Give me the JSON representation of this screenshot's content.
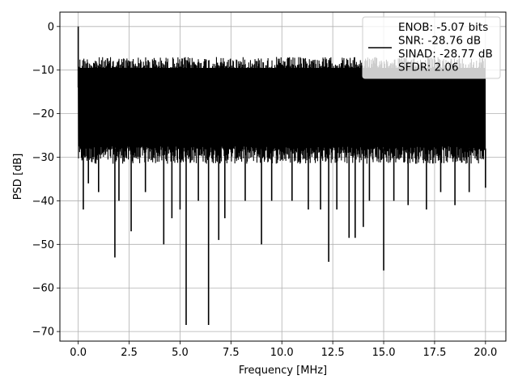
{
  "chart_data": {
    "type": "line",
    "title": "",
    "xlabel": "Frequency [MHz]",
    "ylabel": "PSD [dB]",
    "xlim": [
      -0.9,
      21.0
    ],
    "ylim": [
      -72.2,
      3.3
    ],
    "xticks": [
      0.0,
      2.5,
      5.0,
      7.5,
      10.0,
      12.5,
      15.0,
      17.5,
      20.0
    ],
    "xtick_labels": [
      "0.0",
      "2.5",
      "5.0",
      "7.5",
      "10.0",
      "12.5",
      "15.0",
      "17.5",
      "20.0"
    ],
    "yticks": [
      0,
      -10,
      -20,
      -30,
      -40,
      -50,
      -60,
      -70
    ],
    "ytick_labels": [
      "0",
      "−10",
      "−20",
      "−30",
      "−40",
      "−50",
      "−60",
      "−70"
    ],
    "grid": true,
    "legend_position": "top-right",
    "series": [
      {
        "name": "ENOB: -5.07 bits\nSNR: -28.76 dB\nSINAD: -28.77 dB\nSFDR: 2.06",
        "color": "#000000",
        "noise_band": {
          "x_start": 0.0,
          "x_end": 20.0,
          "upper_envelope": -7,
          "dense_lower": -30
        },
        "peaks": [
          {
            "x": 0.0,
            "y": 0.0
          }
        ],
        "deep_minima": [
          {
            "x": 0.25,
            "y": -42
          },
          {
            "x": 0.5,
            "y": -36
          },
          {
            "x": 1.0,
            "y": -38
          },
          {
            "x": 1.8,
            "y": -53
          },
          {
            "x": 2.0,
            "y": -40
          },
          {
            "x": 2.6,
            "y": -47
          },
          {
            "x": 3.3,
            "y": -38
          },
          {
            "x": 4.2,
            "y": -50
          },
          {
            "x": 4.6,
            "y": -44
          },
          {
            "x": 5.0,
            "y": -42
          },
          {
            "x": 5.3,
            "y": -68.5
          },
          {
            "x": 5.9,
            "y": -40
          },
          {
            "x": 6.4,
            "y": -68.5
          },
          {
            "x": 6.9,
            "y": -49
          },
          {
            "x": 7.2,
            "y": -44
          },
          {
            "x": 8.2,
            "y": -40
          },
          {
            "x": 9.0,
            "y": -50
          },
          {
            "x": 9.5,
            "y": -40
          },
          {
            "x": 10.5,
            "y": -40
          },
          {
            "x": 11.3,
            "y": -42
          },
          {
            "x": 11.9,
            "y": -42
          },
          {
            "x": 12.3,
            "y": -54
          },
          {
            "x": 12.7,
            "y": -42
          },
          {
            "x": 13.3,
            "y": -48.5
          },
          {
            "x": 13.6,
            "y": -48.5
          },
          {
            "x": 14.0,
            "y": -46
          },
          {
            "x": 14.3,
            "y": -40
          },
          {
            "x": 15.0,
            "y": -56
          },
          {
            "x": 15.5,
            "y": -40
          },
          {
            "x": 16.2,
            "y": -41
          },
          {
            "x": 17.1,
            "y": -42
          },
          {
            "x": 17.8,
            "y": -38
          },
          {
            "x": 18.5,
            "y": -41
          },
          {
            "x": 19.2,
            "y": -38
          },
          {
            "x": 20.0,
            "y": -37
          }
        ]
      }
    ]
  }
}
